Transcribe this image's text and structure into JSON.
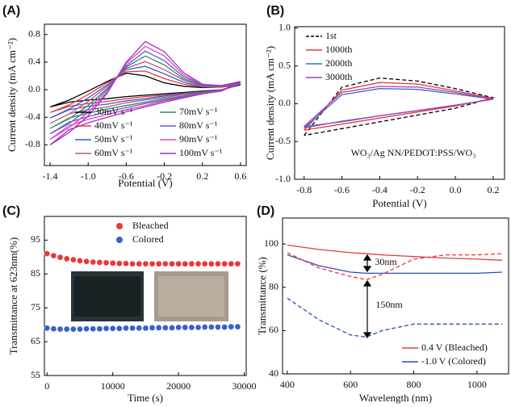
{
  "chart_data": [
    {
      "type": "line",
      "label": "(A)",
      "xlabel": "Potential (V)",
      "ylabel": "Current density (mA cm⁻²)",
      "xlim": [
        -1.46,
        0.66
      ],
      "ylim": [
        -1.1,
        0.95
      ],
      "xticks": [
        -1.4,
        {
          "value": -1.0,
          "label": "-1.0"
        },
        -0.6,
        -0.2,
        0.2,
        0.6
      ],
      "yticks": [
        -0.8,
        -0.4,
        {
          "value": 0,
          "label": "0.0"
        },
        0.4,
        0.8
      ],
      "legend": "lower right",
      "legend_columns": 2,
      "x": [
        -1.4,
        -1.2,
        -1.0,
        -0.8,
        -0.6,
        -0.4,
        -0.2,
        0,
        0.2,
        0.4,
        0.6,
        0.6,
        0.4,
        0.2,
        0,
        -0.2,
        -0.4,
        -0.6,
        -0.8,
        -1.0,
        -1.2,
        -1.4
      ],
      "series": [
        {
          "name": "30mV s⁻¹",
          "color": "#000000",
          "values": [
            -0.25,
            -0.15,
            -0.02,
            0.12,
            0.24,
            0.2,
            0.1,
            0.05,
            0.03,
            0.04,
            0.07,
            0.07,
            0.0,
            -0.02,
            -0.04,
            -0.06,
            -0.08,
            -0.1,
            -0.13,
            -0.15,
            -0.18,
            -0.25
          ]
        },
        {
          "name": "40mV s⁻¹",
          "color": "#e8383d",
          "values": [
            -0.33,
            -0.22,
            -0.07,
            0.1,
            0.26,
            0.27,
            0.16,
            0.08,
            0.04,
            0.04,
            0.08,
            0.08,
            0.0,
            -0.03,
            -0.05,
            -0.08,
            -0.1,
            -0.13,
            -0.17,
            -0.2,
            -0.24,
            -0.33
          ]
        },
        {
          "name": "50mV s⁻¹",
          "color": "#3a5fcd",
          "values": [
            -0.41,
            -0.28,
            -0.12,
            0.07,
            0.29,
            0.34,
            0.23,
            0.11,
            0.04,
            0.05,
            0.08,
            0.08,
            -0.01,
            -0.03,
            -0.06,
            -0.09,
            -0.13,
            -0.16,
            -0.21,
            -0.24,
            -0.29,
            -0.41
          ]
        },
        {
          "name": "60mV s⁻¹",
          "color": "#c0509a",
          "values": [
            -0.49,
            -0.35,
            -0.17,
            0.05,
            0.31,
            0.41,
            0.29,
            0.14,
            0.05,
            0.05,
            0.09,
            0.09,
            -0.01,
            -0.04,
            -0.07,
            -0.11,
            -0.15,
            -0.19,
            -0.25,
            -0.29,
            -0.35,
            -0.49
          ]
        },
        {
          "name": "70mV s⁻¹",
          "color": "#2e8b57",
          "values": [
            -0.56,
            -0.42,
            -0.23,
            0.02,
            0.33,
            0.49,
            0.36,
            0.16,
            0.06,
            0.05,
            0.1,
            0.1,
            -0.01,
            -0.04,
            -0.09,
            -0.13,
            -0.18,
            -0.23,
            -0.28,
            -0.34,
            -0.41,
            -0.56
          ]
        },
        {
          "name": "80mV s⁻¹",
          "color": "#6a5acd",
          "values": [
            -0.64,
            -0.49,
            -0.28,
            0.0,
            0.35,
            0.56,
            0.42,
            0.19,
            0.07,
            0.05,
            0.11,
            0.11,
            -0.01,
            -0.05,
            -0.1,
            -0.15,
            -0.2,
            -0.26,
            -0.32,
            -0.39,
            -0.47,
            -0.64
          ]
        },
        {
          "name": "90mV s⁻¹",
          "color": "#e040c0",
          "values": [
            -0.72,
            -0.55,
            -0.33,
            -0.03,
            0.38,
            0.63,
            0.49,
            0.22,
            0.07,
            0.06,
            0.11,
            0.11,
            -0.02,
            -0.05,
            -0.11,
            -0.16,
            -0.23,
            -0.29,
            -0.36,
            -0.43,
            -0.52,
            -0.72
          ]
        },
        {
          "name": "100mV s⁻¹",
          "color": "#9b30c8",
          "values": [
            -0.8,
            -0.62,
            -0.38,
            -0.05,
            0.4,
            0.7,
            0.55,
            0.25,
            0.08,
            0.06,
            0.12,
            0.12,
            -0.02,
            -0.06,
            -0.12,
            -0.18,
            -0.25,
            -0.32,
            -0.4,
            -0.48,
            -0.58,
            -0.8
          ]
        }
      ]
    },
    {
      "type": "line",
      "label": "(B)",
      "xlabel": "Potential (V)",
      "ylabel": "Current density (mA cm⁻²)",
      "xlim": [
        -0.85,
        0.26
      ],
      "ylim": [
        -1.0,
        1.02
      ],
      "xticks": [
        -0.8,
        -0.6,
        -0.4,
        -0.2,
        {
          "value": 0,
          "label": "0.0"
        },
        0.2
      ],
      "yticks": [
        {
          "value": -1.0,
          "label": "-1.0"
        },
        -0.5,
        {
          "value": 0,
          "label": "0.0"
        },
        0.5,
        {
          "value": 1.0,
          "label": "1.0"
        }
      ],
      "legend": "upper left",
      "legend_columns": 1,
      "annotations": [
        {
          "text": "WO₃/Ag NN/PEDOT:PSS/WO₃"
        }
      ],
      "x": [
        -0.8,
        -0.6,
        -0.4,
        -0.2,
        0,
        0.2,
        0.2,
        0,
        -0.2,
        -0.4,
        -0.6,
        -0.8
      ],
      "series": [
        {
          "name": "1st",
          "color": "#000000",
          "dash": true,
          "values": [
            -0.42,
            0.22,
            0.34,
            0.3,
            0.2,
            0.08,
            0.08,
            -0.06,
            -0.15,
            -0.24,
            -0.33,
            -0.42
          ]
        },
        {
          "name": "1000th",
          "color": "#e8383d",
          "values": [
            -0.35,
            0.18,
            0.28,
            0.26,
            0.17,
            0.07,
            0.07,
            -0.03,
            -0.11,
            -0.19,
            -0.27,
            -0.35
          ]
        },
        {
          "name": "2000th",
          "color": "#3a6fb0",
          "values": [
            -0.32,
            0.12,
            0.2,
            0.19,
            0.13,
            0.06,
            0.06,
            -0.02,
            -0.09,
            -0.16,
            -0.23,
            -0.32
          ]
        },
        {
          "name": "3000th",
          "color": "#a040c0",
          "values": [
            -0.3,
            0.15,
            0.23,
            0.22,
            0.15,
            0.06,
            0.06,
            -0.02,
            -0.09,
            -0.16,
            -0.24,
            -0.3
          ]
        }
      ]
    },
    {
      "type": "scatter",
      "label": "(C)",
      "xlabel": "Time (s)",
      "ylabel": "Transmittance at 623nm(%)",
      "xlim": [
        -400,
        30300
      ],
      "ylim": [
        55,
        102
      ],
      "xticks": [
        0,
        10000,
        20000,
        30000
      ],
      "yticks": [
        55,
        65,
        75,
        85,
        95
      ],
      "legend": "upper center",
      "legend_columns": 1,
      "x": [
        0,
        1000,
        2000,
        3000,
        4000,
        5000,
        6000,
        7000,
        8000,
        9000,
        10000,
        11000,
        12000,
        13000,
        14000,
        15000,
        16000,
        17000,
        18000,
        19000,
        20000,
        21000,
        22000,
        23000,
        24000,
        25000,
        26000,
        27000,
        28000,
        29000
      ],
      "series": [
        {
          "name": "Bleached",
          "color": "#e8383d",
          "values": [
            91.0,
            90.4,
            89.9,
            89.5,
            89.2,
            88.9,
            88.7,
            88.5,
            88.4,
            88.3,
            88.2,
            88.1,
            88.1,
            88.0,
            88.0,
            88.0,
            88.0,
            88.0,
            88.0,
            88.0,
            88.0,
            88.0,
            88.0,
            88.0,
            88.0,
            88.0,
            88.0,
            88.0,
            88.0,
            88.0
          ]
        },
        {
          "name": "Colored",
          "color": "#3a5fcd",
          "values": [
            69.0,
            68.8,
            68.7,
            68.7,
            68.7,
            68.7,
            68.8,
            68.8,
            68.8,
            68.9,
            68.9,
            68.9,
            69.0,
            69.0,
            69.0,
            69.0,
            69.1,
            69.1,
            69.1,
            69.1,
            69.2,
            69.2,
            69.2,
            69.2,
            69.3,
            69.3,
            69.3,
            69.3,
            69.4,
            69.4
          ]
        }
      ]
    },
    {
      "type": "line",
      "label": "(D)",
      "xlabel": "Wavelength (nm)",
      "ylabel": "Transmittance (%)",
      "xlim": [
        385,
        1100
      ],
      "ylim": [
        40,
        112
      ],
      "xticks": [
        400,
        600,
        800,
        1000
      ],
      "yticks": [
        40,
        60,
        80,
        100
      ],
      "legend": "lower right",
      "legend_columns": 1,
      "annotations": [
        {
          "text": "30nm"
        },
        {
          "text": "150nm"
        }
      ],
      "x": [
        400,
        500,
        600,
        650,
        700,
        800,
        900,
        1000,
        1080
      ],
      "series": [
        {
          "name": "0.4 V (Bleached)",
          "color": "#e8383d",
          "values": [
            99.5,
            97.5,
            96,
            95.5,
            95,
            94.2,
            93.5,
            93,
            92.5
          ]
        },
        {
          "name": "-1.0 V (Colored)",
          "color": "#2c4fb5",
          "values": [
            95,
            90,
            87,
            86.5,
            86.5,
            86.5,
            86.5,
            86.5,
            87
          ]
        },
        {
          "color": "#e8383d",
          "dash": true,
          "values": [
            96,
            89,
            85,
            83.5,
            86,
            93,
            95,
            95,
            95.5
          ]
        },
        {
          "color": "#2c4fb5",
          "dash": true,
          "values": [
            75,
            65,
            58,
            57,
            60,
            63,
            63,
            63,
            63
          ]
        }
      ]
    }
  ]
}
